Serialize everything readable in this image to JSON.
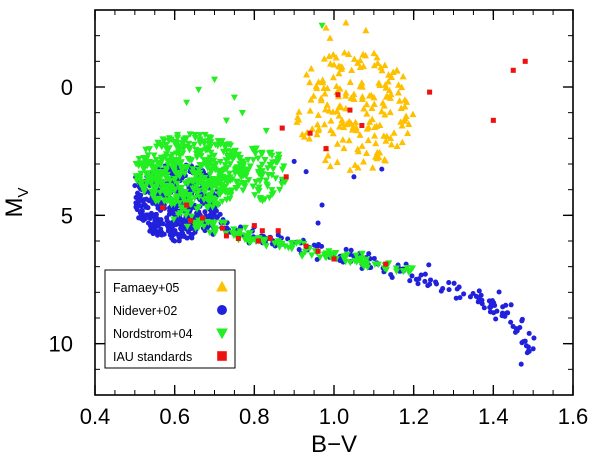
{
  "chart_data": {
    "type": "scatter",
    "xlabel": "B−V",
    "ylabel": {
      "main": "M",
      "sub": "V"
    },
    "xlim": [
      0.4,
      1.6
    ],
    "ylim": [
      12,
      -3
    ],
    "y_inverted": true,
    "xticks": [
      0.4,
      0.6,
      0.8,
      1.0,
      1.2,
      1.4,
      1.6
    ],
    "xtick_labels": [
      "0.4",
      "0.6",
      "0.8",
      "1.0",
      "1.2",
      "1.4",
      "1.6"
    ],
    "yticks": [
      0,
      5,
      10
    ],
    "ytick_labels": [
      "0",
      "5",
      "10"
    ],
    "grid": false,
    "legend_position": "bottom-left",
    "series": [
      {
        "name": "Famaey+05",
        "marker": "triangle-up",
        "color": "#ffc000",
        "generated": {
          "seed": 11,
          "clusters": [
            {
              "n": 190,
              "x": [
                0.9,
                1.2
              ],
              "y": [
                -1.5,
                3.3
              ],
              "shape": "ellipse"
            }
          ],
          "extra_points": [
            [
              1.03,
              -2.5
            ],
            [
              1.08,
              -2.2
            ],
            [
              0.98,
              -2.3
            ],
            [
              0.99,
              -1.9
            ]
          ]
        }
      },
      {
        "name": "Nidever+02",
        "marker": "circle",
        "color": "#2020dd",
        "generated": {
          "seed": 23,
          "clusters": [
            {
              "n": 420,
              "x": [
                0.5,
                0.72
              ],
              "y": [
                3.0,
                6.0
              ],
              "shape": "ellipse"
            }
          ],
          "sequence": {
            "n": 210,
            "points": [
              [
                0.5,
                3.8
              ],
              [
                0.6,
                4.6
              ],
              [
                0.7,
                5.3
              ],
              [
                0.8,
                5.8
              ],
              [
                0.9,
                6.1
              ],
              [
                1.0,
                6.5
              ],
              [
                1.1,
                6.9
              ],
              [
                1.2,
                7.3
              ],
              [
                1.3,
                7.8
              ],
              [
                1.4,
                8.4
              ],
              [
                1.45,
                9.0
              ],
              [
                1.5,
                10.6
              ]
            ],
            "spread": 0.3
          },
          "extra_points": [
            [
              0.87,
              3.6
            ],
            [
              0.9,
              2.9
            ],
            [
              0.93,
              3.3
            ],
            [
              0.97,
              4.6
            ],
            [
              0.96,
              5.3
            ],
            [
              1.05,
              3.5
            ],
            [
              1.12,
              3.2
            ],
            [
              0.6,
              6.0
            ],
            [
              1.47,
              10.8
            ],
            [
              1.49,
              10.3
            ],
            [
              1.48,
              9.9
            ],
            [
              1.5,
              10.2
            ],
            [
              1.46,
              9.5
            ],
            [
              1.49,
              9.6
            ]
          ]
        }
      },
      {
        "name": "Nordstrom+04",
        "marker": "triangle-down",
        "color": "#22ee22",
        "generated": {
          "seed": 37,
          "clusters": [
            {
              "n": 480,
              "x": [
                0.5,
                0.78
              ],
              "y": [
                1.8,
                4.8
              ],
              "shape": "ellipse"
            },
            {
              "n": 80,
              "x": [
                0.75,
                0.88
              ],
              "y": [
                2.3,
                4.5
              ],
              "shape": "ellipse"
            }
          ],
          "sequence": {
            "n": 140,
            "points": [
              [
                0.6,
                5.0
              ],
              [
                0.7,
                5.5
              ],
              [
                0.8,
                5.9
              ],
              [
                0.9,
                6.2
              ],
              [
                1.0,
                6.6
              ],
              [
                1.1,
                6.9
              ],
              [
                1.2,
                7.2
              ]
            ],
            "spread": 0.22
          },
          "extra_points": [
            [
              0.97,
              -2.4
            ],
            [
              0.7,
              -0.3
            ],
            [
              0.75,
              0.4
            ],
            [
              0.66,
              0.1
            ],
            [
              0.63,
              0.6
            ],
            [
              0.73,
              1.3
            ],
            [
              0.83,
              1.7
            ],
            [
              0.87,
              3.6
            ],
            [
              0.77,
              1.0
            ],
            [
              0.8,
              2.4
            ]
          ]
        }
      },
      {
        "name": "IAU standards",
        "marker": "square",
        "color": "#ee1111",
        "points": [
          [
            1.48,
            -1.0
          ],
          [
            1.45,
            -0.65
          ],
          [
            1.24,
            0.2
          ],
          [
            1.4,
            1.3
          ],
          [
            1.01,
            0.3
          ],
          [
            1.04,
            0.9
          ],
          [
            1.07,
            1.5
          ],
          [
            0.94,
            1.8
          ],
          [
            0.98,
            2.4
          ],
          [
            0.87,
            1.6
          ],
          [
            0.88,
            3.5
          ],
          [
            0.57,
            4.7
          ],
          [
            0.63,
            4.6
          ],
          [
            0.64,
            5.2
          ],
          [
            0.67,
            5.1
          ],
          [
            0.72,
            5.5
          ],
          [
            0.73,
            5.8
          ],
          [
            0.76,
            5.9
          ],
          [
            0.8,
            5.4
          ],
          [
            0.81,
            6.0
          ],
          [
            0.82,
            5.6
          ],
          [
            0.84,
            5.9
          ],
          [
            0.93,
            6.2
          ],
          [
            0.96,
            6.4
          ],
          [
            1.0,
            6.7
          ],
          [
            1.13,
            6.9
          ],
          [
            0.86,
            5.6
          ]
        ]
      }
    ]
  }
}
